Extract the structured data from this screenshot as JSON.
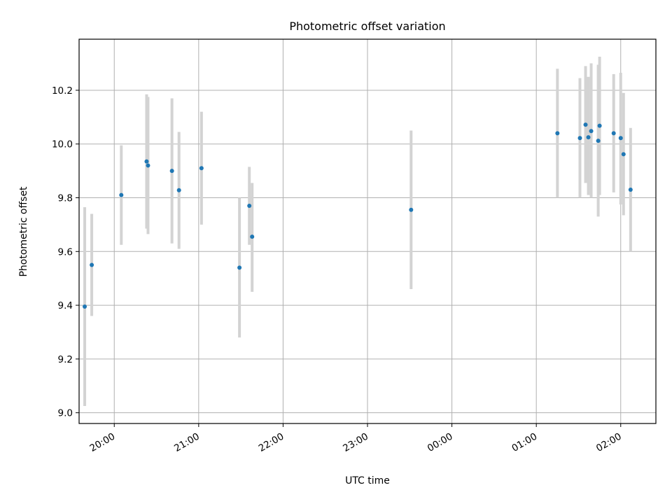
{
  "chart_data": {
    "type": "scatter",
    "title": "Photometric offset variation",
    "xlabel": "UTC time",
    "ylabel": "Photometric offset",
    "xlim": [
      "19:35",
      "02:25 (+1 day)"
    ],
    "ylim": [
      8.96,
      10.39
    ],
    "grid": true,
    "marker_color": "#1f77b4",
    "errorbar_color": "#d3d3d3",
    "x_ticks": [
      "20:00",
      "21:00",
      "22:00",
      "23:00",
      "00:00",
      "01:00",
      "02:00"
    ],
    "y_ticks": [
      "9.0",
      "9.2",
      "9.4",
      "9.6",
      "9.8",
      "10.0",
      "10.2"
    ],
    "points": [
      {
        "x": "19:39",
        "y": 9.395,
        "low": 9.025,
        "high": 9.765
      },
      {
        "x": "19:44",
        "y": 9.55,
        "low": 9.36,
        "high": 9.74
      },
      {
        "x": "20:05",
        "y": 9.81,
        "low": 9.625,
        "high": 9.995
      },
      {
        "x": "20:23",
        "y": 9.935,
        "low": 9.685,
        "high": 10.185
      },
      {
        "x": "20:24",
        "y": 9.92,
        "low": 9.665,
        "high": 10.175
      },
      {
        "x": "20:41",
        "y": 9.9,
        "low": 9.63,
        "high": 10.17
      },
      {
        "x": "20:46",
        "y": 9.828,
        "low": 9.61,
        "high": 10.045
      },
      {
        "x": "21:02",
        "y": 9.91,
        "low": 9.7,
        "high": 10.12
      },
      {
        "x": "21:29",
        "y": 9.54,
        "low": 9.28,
        "high": 9.8
      },
      {
        "x": "21:36",
        "y": 9.77,
        "low": 9.625,
        "high": 9.915
      },
      {
        "x": "21:38",
        "y": 9.655,
        "low": 9.45,
        "high": 9.855
      },
      {
        "x": "23:31",
        "y": 9.755,
        "low": 9.46,
        "high": 10.05
      },
      {
        "x": "01:15",
        "y": 10.04,
        "low": 9.8,
        "high": 10.28
      },
      {
        "x": "01:31",
        "y": 10.022,
        "low": 9.8,
        "high": 10.245
      },
      {
        "x": "01:35",
        "y": 10.072,
        "low": 9.855,
        "high": 10.29
      },
      {
        "x": "01:37",
        "y": 10.025,
        "low": 9.81,
        "high": 10.25
      },
      {
        "x": "01:39",
        "y": 10.048,
        "low": 9.8,
        "high": 10.3
      },
      {
        "x": "01:44",
        "y": 10.012,
        "low": 9.73,
        "high": 10.295
      },
      {
        "x": "01:45",
        "y": 10.068,
        "low": 9.81,
        "high": 10.325
      },
      {
        "x": "01:55",
        "y": 10.04,
        "low": 9.82,
        "high": 10.26
      },
      {
        "x": "02:00",
        "y": 10.022,
        "low": 9.775,
        "high": 10.265
      },
      {
        "x": "02:02",
        "y": 9.962,
        "low": 9.735,
        "high": 10.19
      },
      {
        "x": "02:07",
        "y": 9.83,
        "low": 9.6,
        "high": 10.06
      }
    ]
  }
}
